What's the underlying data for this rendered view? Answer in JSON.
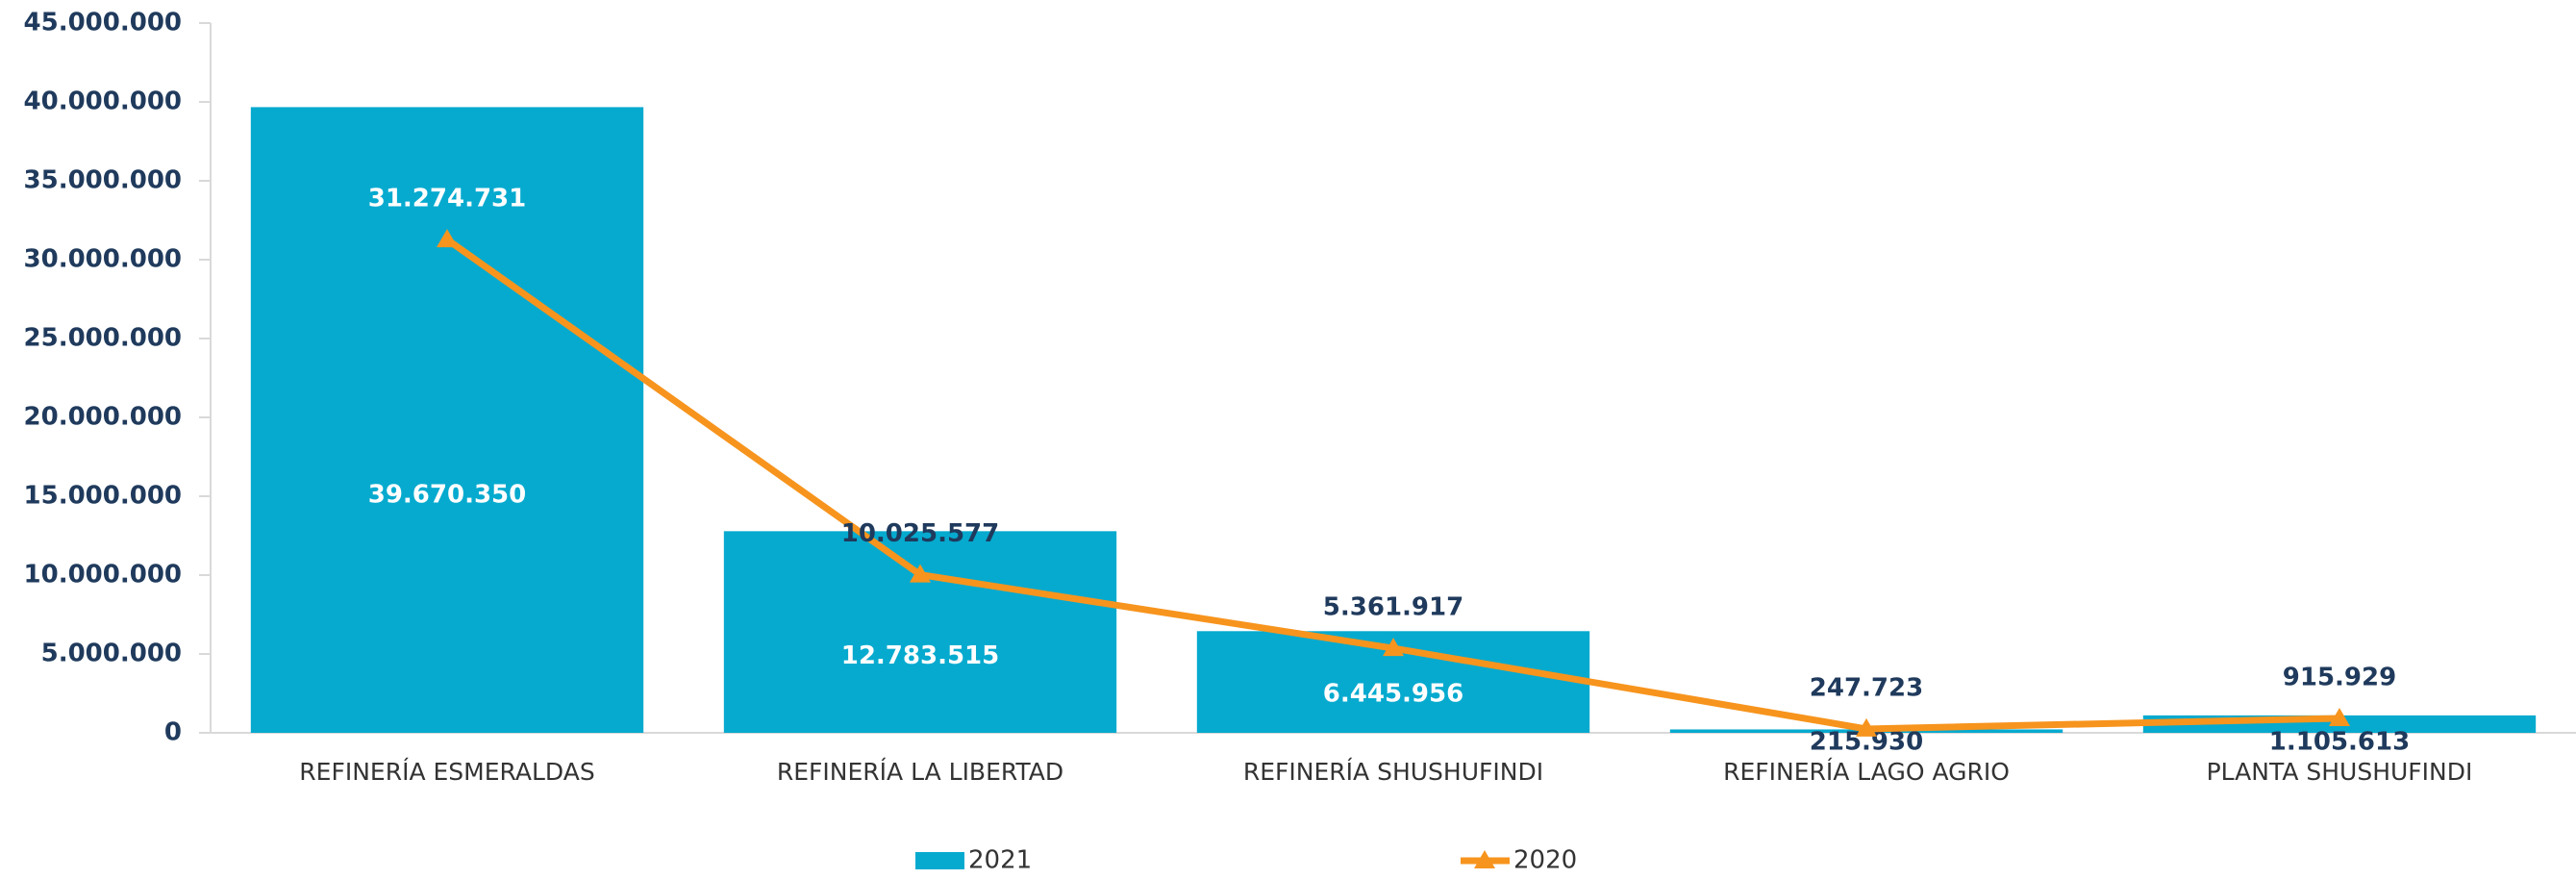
{
  "chart_data": {
    "type": "bar_line",
    "categories": [
      "REFINERÍA ESMERALDAS",
      "REFINERÍA LA LIBERTAD",
      "REFINERÍA SHUSHUFINDI",
      "REFINERÍA LAGO AGRIO",
      "PLANTA SHUSHUFINDI"
    ],
    "series": [
      {
        "name": "2021",
        "type": "bar",
        "color": "#06aacf",
        "values": [
          39670350,
          12783515,
          6445956,
          215930,
          1105613
        ],
        "value_labels": [
          "39.670.350",
          "12.783.515",
          "6.445.956",
          "215.930",
          "1.105.613"
        ]
      },
      {
        "name": "2020",
        "type": "line",
        "color": "#f7941d",
        "values": [
          31274731,
          10025577,
          5361917,
          247723,
          915929
        ],
        "value_labels": [
          "31.274.731",
          "10.025.577",
          "5.361.917",
          "247.723",
          "915.929"
        ]
      }
    ],
    "ylim": [
      0,
      45000000
    ],
    "yticks": [
      0,
      {
        "value": 5000000,
        "label": "5.000.000"
      },
      {
        "value": 10000000,
        "label": "10.000.000"
      },
      {
        "value": 15000000,
        "label": "15.000.000"
      },
      {
        "value": 20000000,
        "label": "20.000.000"
      },
      {
        "value": 25000000,
        "label": "25.000.000"
      },
      {
        "value": 30000000,
        "label": "30.000.000"
      },
      {
        "value": 35000000,
        "label": "35.000.000"
      },
      {
        "value": 40000000,
        "label": "40.000.000"
      },
      {
        "value": 45000000,
        "label": "45.000.000"
      }
    ],
    "grid": false,
    "legend": "bottom"
  }
}
